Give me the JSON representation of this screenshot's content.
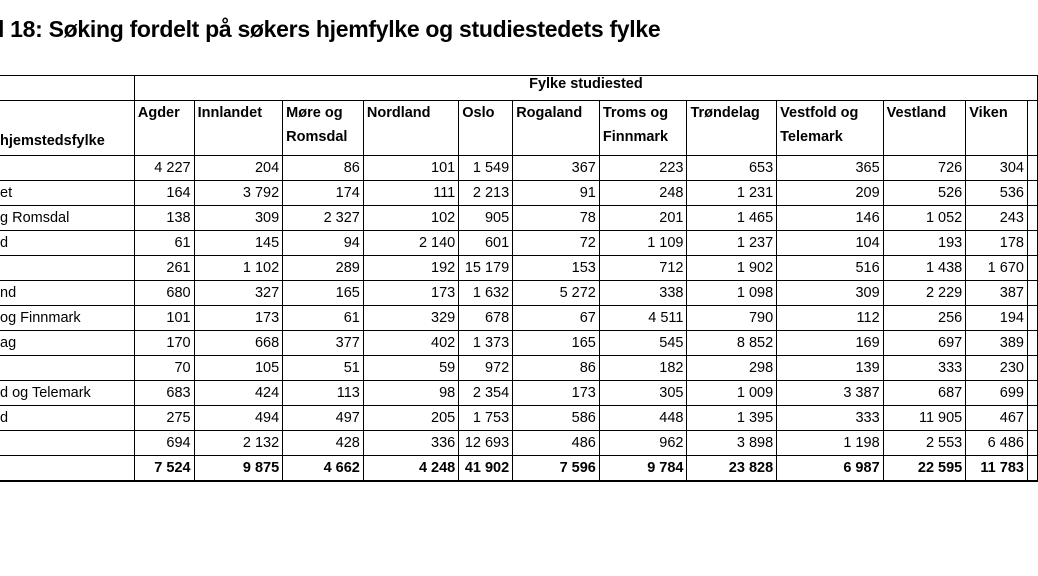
{
  "title": "l 18: Søking fordelt på søkers hjemfylke og studiestedets fylke",
  "table": {
    "group_header": "Fylke studiested",
    "row_header": "hjemstedsfylke",
    "columns": [
      "Agder",
      "Innlandet",
      "Møre og Romsdal",
      "Nordland",
      "Oslo",
      "Rogaland",
      "Troms og Finnmark",
      "Trøndelag",
      "Vestfold og Telemark",
      "Vestland",
      "Viken"
    ],
    "columns_lines": [
      [
        "Agder"
      ],
      [
        "Innlandet"
      ],
      [
        "Møre og",
        "Romsdal"
      ],
      [
        "Nordland"
      ],
      [
        "Oslo"
      ],
      [
        "Rogaland"
      ],
      [
        "Troms og",
        "Finnmark"
      ],
      [
        "Trøndelag"
      ],
      [
        "Vestfold og",
        "Telemark"
      ],
      [
        "Vestland"
      ],
      [
        "Viken"
      ]
    ],
    "rows": [
      {
        "label": "",
        "values": [
          "4 227",
          "204",
          "86",
          "101",
          "1 549",
          "367",
          "223",
          "653",
          "365",
          "726",
          "304"
        ]
      },
      {
        "label": "et",
        "values": [
          "164",
          "3 792",
          "174",
          "111",
          "2 213",
          "91",
          "248",
          "1 231",
          "209",
          "526",
          "536"
        ]
      },
      {
        "label": "g Romsdal",
        "values": [
          "138",
          "309",
          "2 327",
          "102",
          "905",
          "78",
          "201",
          "1 465",
          "146",
          "1 052",
          "243"
        ]
      },
      {
        "label": "d",
        "values": [
          "61",
          "145",
          "94",
          "2 140",
          "601",
          "72",
          "1 109",
          "1 237",
          "104",
          "193",
          "178"
        ]
      },
      {
        "label": "",
        "values": [
          "261",
          "1 102",
          "289",
          "192",
          "15 179",
          "153",
          "712",
          "1 902",
          "516",
          "1 438",
          "1 670"
        ]
      },
      {
        "label": "nd",
        "values": [
          "680",
          "327",
          "165",
          "173",
          "1 632",
          "5 272",
          "338",
          "1 098",
          "309",
          "2 229",
          "387"
        ]
      },
      {
        "label": "og Finnmark",
        "values": [
          "101",
          "173",
          "61",
          "329",
          "678",
          "67",
          "4 511",
          "790",
          "112",
          "256",
          "194"
        ]
      },
      {
        "label": "ag",
        "values": [
          "170",
          "668",
          "377",
          "402",
          "1 373",
          "165",
          "545",
          "8 852",
          "169",
          "697",
          "389"
        ]
      },
      {
        "label": "",
        "values": [
          "70",
          "105",
          "51",
          "59",
          "972",
          "86",
          "182",
          "298",
          "139",
          "333",
          "230"
        ]
      },
      {
        "label": "d og Telemark",
        "values": [
          "683",
          "424",
          "113",
          "98",
          "2 354",
          "173",
          "305",
          "1 009",
          "3 387",
          "687",
          "699"
        ]
      },
      {
        "label": "d",
        "values": [
          "275",
          "494",
          "497",
          "205",
          "1 753",
          "586",
          "448",
          "1 395",
          "333",
          "11 905",
          "467"
        ]
      },
      {
        "label": "",
        "values": [
          "694",
          "2 132",
          "428",
          "336",
          "12 693",
          "486",
          "962",
          "3 898",
          "1 198",
          "2 553",
          "6 486"
        ]
      }
    ],
    "total": {
      "label": "",
      "values": [
        "7 524",
        "9 875",
        "4 662",
        "4 248",
        "41 902",
        "7 596",
        "9 784",
        "23 828",
        "6 987",
        "22 595",
        "11 783"
      ]
    }
  }
}
